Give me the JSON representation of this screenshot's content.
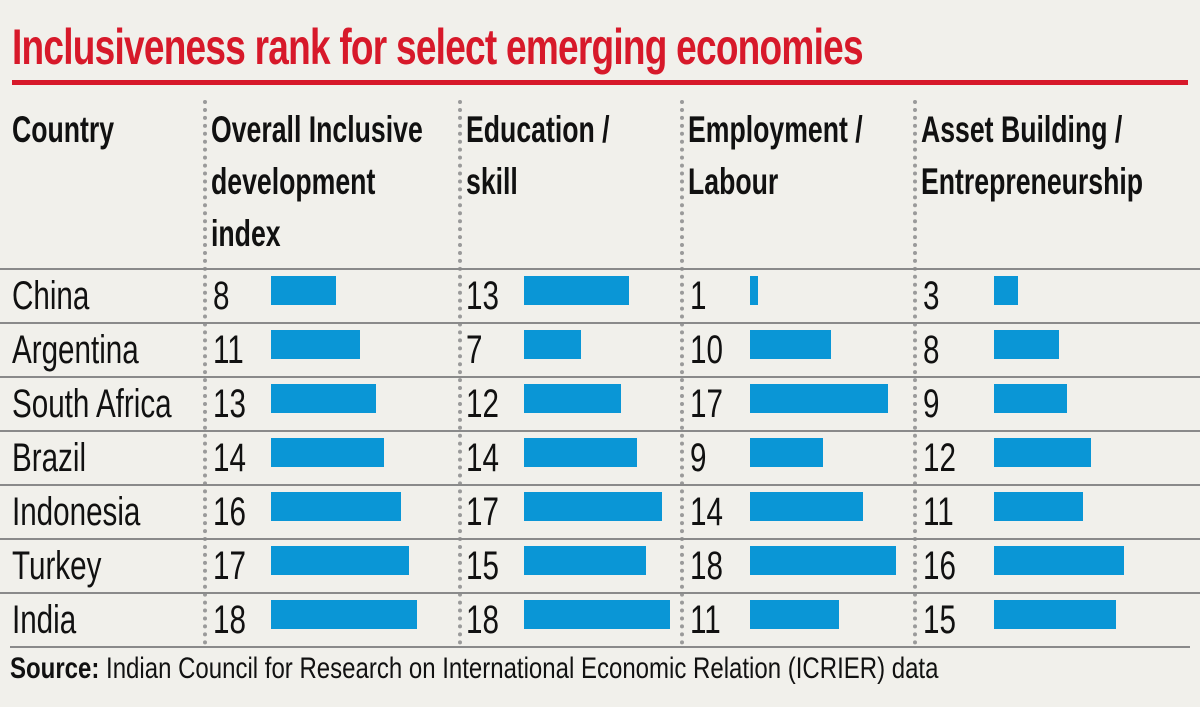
{
  "title": "Inclusiveness rank for select emerging economies",
  "colors": {
    "title": "#d7192a",
    "bar": "#0a96d6",
    "background": "#f1f0eb"
  },
  "chart_data": {
    "type": "bar",
    "title": "Inclusiveness rank for select emerging economies",
    "orientation": "horizontal",
    "category_header": "Country",
    "categories": [
      "China",
      "Argentina",
      "South Africa",
      "Brazil",
      "Indonesia",
      "Turkey",
      "India"
    ],
    "series": [
      {
        "name": "Overall Inclusive development index",
        "header_lines": [
          "Overall Inclusive",
          "development",
          "index"
        ],
        "values": [
          8,
          11,
          13,
          14,
          16,
          17,
          18
        ]
      },
      {
        "name": "Education / skill",
        "header_lines": [
          "Education /",
          "skill"
        ],
        "values": [
          13,
          7,
          12,
          14,
          17,
          15,
          18
        ]
      },
      {
        "name": "Employment / Labour",
        "header_lines": [
          "Employment /",
          " Labour"
        ],
        "values": [
          1,
          10,
          17,
          9,
          14,
          18,
          11
        ]
      },
      {
        "name": "Asset Building / Entrepreneurship",
        "header_lines": [
          "Asset Building /",
          "Entrepreneurship"
        ],
        "values": [
          3,
          8,
          9,
          12,
          11,
          16,
          15
        ]
      }
    ]
  },
  "source": {
    "label": "Source:",
    "text": " Indian Council for Research on International Economic Relation (ICRIER) data"
  }
}
